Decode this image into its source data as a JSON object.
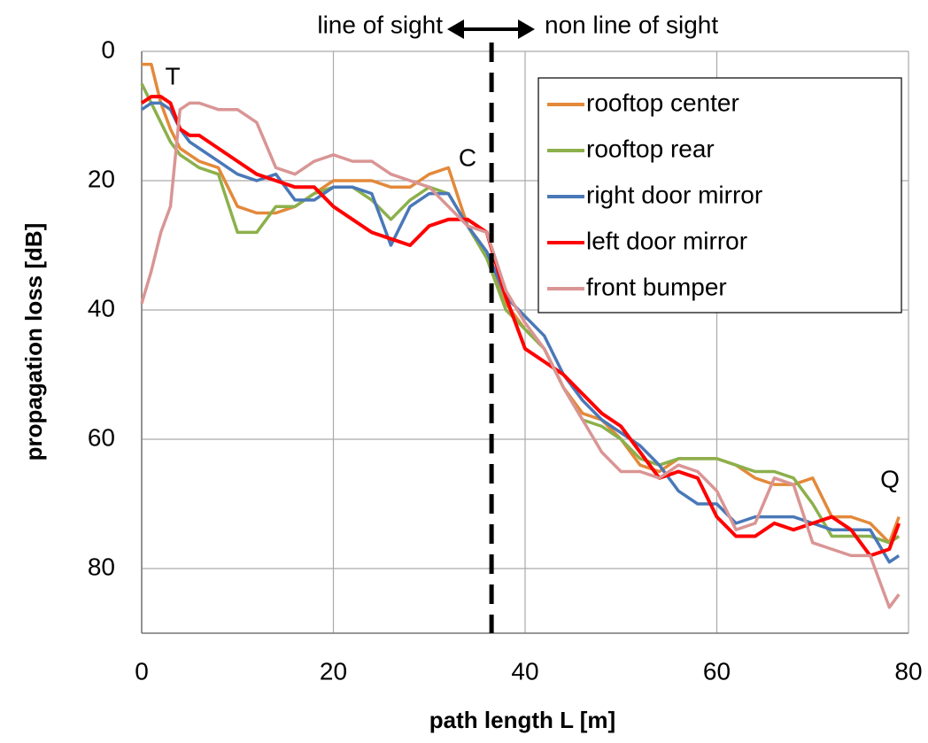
{
  "chart_data": {
    "type": "line",
    "xlabel": "path length L [m]",
    "ylabel": "propagation loss [dB]",
    "x": [
      0,
      1,
      2,
      3,
      4,
      5,
      6,
      8,
      10,
      12,
      14,
      16,
      18,
      20,
      22,
      24,
      26,
      28,
      30,
      32,
      34,
      36,
      38,
      40,
      42,
      44,
      46,
      48,
      50,
      52,
      54,
      56,
      58,
      60,
      62,
      64,
      66,
      68,
      70,
      72,
      74,
      76,
      78,
      79
    ],
    "series": [
      {
        "name": "rooftop center",
        "color": "#e3893a",
        "values": [
          2,
          2,
          8,
          12,
          15,
          16,
          17,
          18,
          24,
          25,
          25,
          24,
          22,
          20,
          20,
          20,
          21,
          21,
          19,
          18,
          27,
          31,
          39,
          43,
          46,
          52,
          56,
          57,
          60,
          64,
          65,
          63,
          63,
          63,
          64,
          66,
          67,
          67,
          66,
          72,
          72,
          73,
          76,
          72
        ]
      },
      {
        "name": "rooftop rear",
        "color": "#8cb04c",
        "values": [
          5,
          8,
          11,
          14,
          16,
          17,
          18,
          19,
          28,
          28,
          24,
          24,
          22,
          21,
          21,
          23,
          26,
          23,
          21,
          22,
          27,
          32,
          40,
          43,
          46,
          52,
          57,
          58,
          60,
          63,
          64,
          63,
          63,
          63,
          64,
          65,
          65,
          66,
          70,
          75,
          75,
          75,
          76,
          75
        ]
      },
      {
        "name": "right door mirror",
        "color": "#4a78b8",
        "values": [
          9,
          8,
          8,
          9,
          12,
          14,
          15,
          17,
          19,
          20,
          19,
          23,
          23,
          21,
          21,
          22,
          30,
          24,
          22,
          22,
          27,
          31,
          38,
          41,
          44,
          50,
          54,
          57,
          59,
          61,
          64,
          68,
          70,
          70,
          73,
          72,
          72,
          72,
          73,
          74,
          74,
          74,
          79,
          78
        ]
      },
      {
        "name": "left door mirror",
        "color": "#ff0000",
        "values": [
          8,
          7,
          7,
          8,
          12,
          13,
          13,
          15,
          17,
          19,
          20,
          21,
          21,
          24,
          26,
          28,
          29,
          30,
          27,
          26,
          26,
          28,
          38,
          46,
          48,
          50,
          53,
          56,
          58,
          62,
          66,
          65,
          66,
          72,
          75,
          75,
          73,
          74,
          73,
          72,
          74,
          78,
          77,
          73
        ]
      },
      {
        "name": "front bumper",
        "color": "#d99594",
        "values": [
          39,
          34,
          28,
          24,
          9,
          8,
          8,
          9,
          9,
          11,
          18,
          19,
          17,
          16,
          17,
          17,
          19,
          20,
          21,
          24,
          27,
          28,
          37,
          42,
          46,
          52,
          57,
          62,
          65,
          65,
          66,
          64,
          65,
          68,
          74,
          73,
          66,
          67,
          76,
          77,
          78,
          78,
          86,
          84
        ]
      }
    ],
    "xlim": [
      0,
      80
    ],
    "ylim": [
      0,
      90
    ],
    "y_reversed": true,
    "xticks": [
      0,
      20,
      40,
      60,
      80
    ],
    "yticks": [
      0,
      20,
      40,
      60,
      80
    ],
    "grid": true,
    "legend": "upper right",
    "reference_line": {
      "x": 36.5
    },
    "annotations": {
      "left_region": "line of sight",
      "right_region": "non line of sight",
      "start": "T",
      "corner": "C",
      "end": "Q"
    }
  }
}
